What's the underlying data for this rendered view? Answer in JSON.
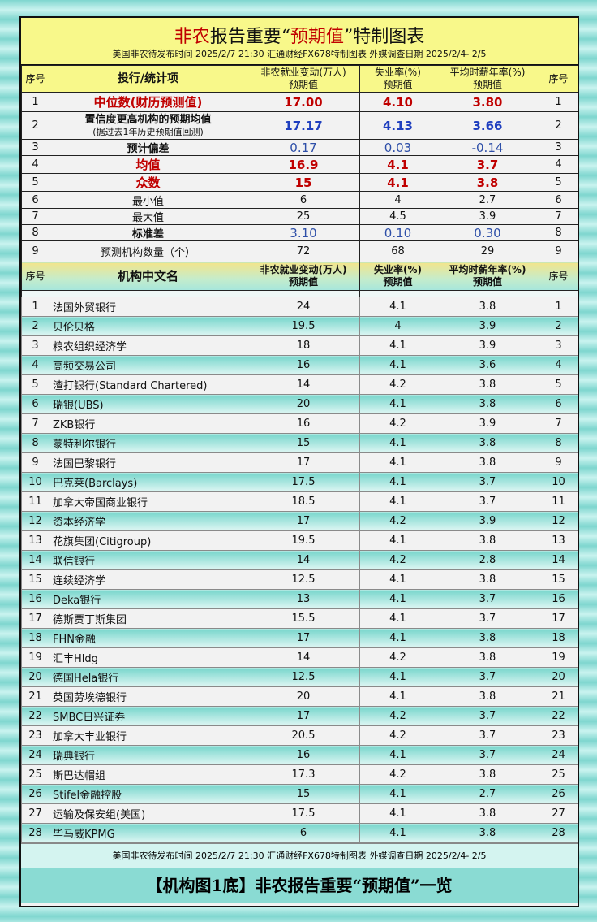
{
  "header": {
    "title_red1": "非农",
    "title_mid": "报告重要“",
    "title_red2": "预期值",
    "title_end": "”特制图表",
    "subtitle": "美国非农待发布时间 2025/2/7 21:30  汇通财经FX678特制图表  外媒调查日期 2025/2/4- 2/5"
  },
  "summary_header": {
    "seq": "序号",
    "item": "投行/统计项",
    "nfp": "非农就业变动(万人)",
    "nfp_sub": "预期值",
    "unemp": "失业率(%)",
    "unemp_sub": "预期值",
    "wage": "平均时薪年率(%)",
    "wage_sub": "预期值"
  },
  "summary_rows": [
    {
      "n": "1",
      "label": "中位数(财历预测值)",
      "nfp": "17.00",
      "unemp": "4.10",
      "wage": "3.80",
      "style": "red"
    },
    {
      "n": "2",
      "label": "置信度更高机构的预期均值",
      "label2": "(据过去1年历史预期值回测)",
      "nfp": "17.17",
      "unemp": "4.13",
      "wage": "3.66",
      "style": "blue"
    },
    {
      "n": "3",
      "label": "预计偏差",
      "nfp": "0.17",
      "unemp": "0.03",
      "wage": "-0.14",
      "style": "blue2"
    },
    {
      "n": "4",
      "label": "均值",
      "nfp": "16.9",
      "unemp": "4.1",
      "wage": "3.7",
      "style": "red"
    },
    {
      "n": "5",
      "label": "众数",
      "nfp": "15",
      "unemp": "4.1",
      "wage": "3.8",
      "style": "red"
    },
    {
      "n": "6",
      "label": "最小值",
      "nfp": "6",
      "unemp": "4",
      "wage": "2.7",
      "style": "plain"
    },
    {
      "n": "7",
      "label": "最大值",
      "nfp": "25",
      "unemp": "4.5",
      "wage": "3.9",
      "style": "plain"
    },
    {
      "n": "8",
      "label": "标准差",
      "nfp": "3.10",
      "unemp": "0.10",
      "wage": "0.30",
      "style": "blue2"
    },
    {
      "n": "9",
      "label": "预测机构数量（个）",
      "nfp": "72",
      "unemp": "68",
      "wage": "29",
      "style": "plain"
    }
  ],
  "list_header": {
    "seq": "序号",
    "name": "机构中文名",
    "nfp": "非农就业变动(万人)",
    "nfp_sub": "预期值",
    "unemp": "失业率(%)",
    "unemp_sub": "预期值",
    "wage": "平均时薪年率(%)",
    "wage_sub": "预期值"
  },
  "institutions": [
    {
      "n": "1",
      "name": "法国外贸银行",
      "nfp": "24",
      "unemp": "4.1",
      "wage": "3.8"
    },
    {
      "n": "2",
      "name": "贝伦贝格",
      "nfp": "19.5",
      "unemp": "4",
      "wage": "3.9"
    },
    {
      "n": "3",
      "name": "粮农组织经济学",
      "nfp": "18",
      "unemp": "4.1",
      "wage": "3.9"
    },
    {
      "n": "4",
      "name": "高频交易公司",
      "nfp": "16",
      "unemp": "4.1",
      "wage": "3.6"
    },
    {
      "n": "5",
      "name": "渣打银行(Standard Chartered)",
      "nfp": "14",
      "unemp": "4.2",
      "wage": "3.8"
    },
    {
      "n": "6",
      "name": "瑞银(UBS)",
      "nfp": "20",
      "unemp": "4.1",
      "wage": "3.8"
    },
    {
      "n": "7",
      "name": "ZKB银行",
      "nfp": "16",
      "unemp": "4.2",
      "wage": "3.9"
    },
    {
      "n": "8",
      "name": "蒙特利尔银行",
      "nfp": "15",
      "unemp": "4.1",
      "wage": "3.8"
    },
    {
      "n": "9",
      "name": "法国巴黎银行",
      "nfp": "17",
      "unemp": "4.1",
      "wage": "3.8"
    },
    {
      "n": "10",
      "name": "巴克莱(Barclays)",
      "nfp": "17.5",
      "unemp": "4.1",
      "wage": "3.7"
    },
    {
      "n": "11",
      "name": "加拿大帝国商业银行",
      "nfp": "18.5",
      "unemp": "4.1",
      "wage": "3.7"
    },
    {
      "n": "12",
      "name": "资本经济学",
      "nfp": "17",
      "unemp": "4.2",
      "wage": "3.9"
    },
    {
      "n": "13",
      "name": "花旗集团(Citigroup)",
      "nfp": "19.5",
      "unemp": "4.1",
      "wage": "3.8"
    },
    {
      "n": "14",
      "name": "联信银行",
      "nfp": "14",
      "unemp": "4.2",
      "wage": "2.8"
    },
    {
      "n": "15",
      "name": "连续经济学",
      "nfp": "12.5",
      "unemp": "4.1",
      "wage": "3.8"
    },
    {
      "n": "16",
      "name": "Deka银行",
      "nfp": "13",
      "unemp": "4.1",
      "wage": "3.7"
    },
    {
      "n": "17",
      "name": "德斯贾丁斯集团",
      "nfp": "15.5",
      "unemp": "4.1",
      "wage": "3.7"
    },
    {
      "n": "18",
      "name": "FHN金融",
      "nfp": "17",
      "unemp": "4.1",
      "wage": "3.8"
    },
    {
      "n": "19",
      "name": "汇丰Hldg",
      "nfp": "14",
      "unemp": "4.2",
      "wage": "3.8"
    },
    {
      "n": "20",
      "name": "德国Hela银行",
      "nfp": "12.5",
      "unemp": "4.1",
      "wage": "3.7"
    },
    {
      "n": "21",
      "name": "英国劳埃德银行",
      "nfp": "20",
      "unemp": "4.1",
      "wage": "3.8"
    },
    {
      "n": "22",
      "name": "SMBC日兴证券",
      "nfp": "17",
      "unemp": "4.2",
      "wage": "3.7"
    },
    {
      "n": "23",
      "name": "加拿大丰业银行",
      "nfp": "20.5",
      "unemp": "4.2",
      "wage": "3.7"
    },
    {
      "n": "24",
      "name": "瑞典银行",
      "nfp": "16",
      "unemp": "4.1",
      "wage": "3.7"
    },
    {
      "n": "25",
      "name": "斯巴达帽组",
      "nfp": "17.3",
      "unemp": "4.2",
      "wage": "3.8"
    },
    {
      "n": "26",
      "name": "Stifel金融控股",
      "nfp": "15",
      "unemp": "4.1",
      "wage": "2.7"
    },
    {
      "n": "27",
      "name": "运输及保安组(美国)",
      "nfp": "17.5",
      "unemp": "4.1",
      "wage": "3.8"
    },
    {
      "n": "28",
      "name": "毕马威KPMG",
      "nfp": "6",
      "unemp": "4.1",
      "wage": "3.8"
    }
  ],
  "footer": {
    "info": "美国非农待发布时间 2025/2/7 21:30  汇通财经FX678特制图表  外媒调查日期 2025/2/4- 2/5",
    "caption": "【机构图1底】非农报告重要“预期值”一览"
  },
  "colors": {
    "accent_red": "#c00000",
    "accent_blue": "#1f3fbf",
    "header_yellow": "#f8f88a",
    "teal": "#78d6cc"
  }
}
